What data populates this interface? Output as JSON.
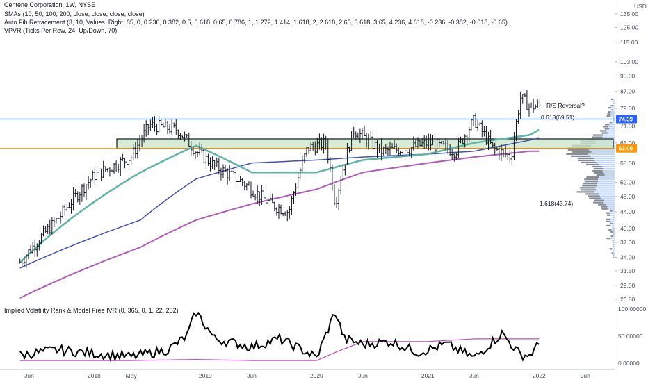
{
  "header": {
    "title": "Centene Corporation, 1W, NYSE",
    "line2": "SMAs (10, 50, 100, 200, close, close, close, close)",
    "line3": "Auto Fib Retracement (3, 10, Values, Right, 85, 0, 0.236, 0.382, 0.5, 0.618, 0.65, 0.786, 1, 1.272, 1.414, 1.618, 2, 2.618, 2.65, 3.618, 3.65, 4.236, 4.618, -0.236, -0.382, -0.618, -0.65)",
    "line4": "VPVR (Ticks Per Row, 24, Up/Down, 70)",
    "currency": "USD"
  },
  "price_axis": {
    "ticks": [
      "135.00",
      "125.00",
      "115.00",
      "103.00",
      "95.00",
      "87.00",
      "79.00",
      "71.50",
      "65.00",
      "58.00",
      "52.00",
      "48.00",
      "44.00",
      "40.00",
      "37.00",
      "34.00",
      "31.50",
      "29.00",
      "26.80"
    ],
    "tags": [
      {
        "label": "74.39",
        "value": 74.39,
        "color": "#2962ff"
      },
      {
        "label": "63.00",
        "value": 63.0,
        "color": "#ff9800"
      }
    ]
  },
  "annotations": {
    "rs_reversal": "R/S Reversal?",
    "fib_0618": "0.618(69.51)",
    "fib_1618": "1.618(43.74)"
  },
  "ivr_panel": {
    "title": "Implied Volatility Rank & Model Free IVR (0, 365, 0, 1, 22, 252)",
    "ticks": [
      "100.00000",
      "50.00000",
      "0.00000"
    ]
  },
  "time_axis": {
    "labels": [
      "Jun",
      "2018",
      "May",
      "2019",
      "Jun",
      "2020",
      "Jun",
      "2021",
      "Jun",
      "2022",
      "Jun"
    ]
  },
  "colors": {
    "bars": "#131722",
    "resistance": "#2962ff",
    "support": "#ff9800",
    "zone_fill": "#c8e6c9",
    "sma50": "#5fb3a7",
    "sma100": "#3f51b5",
    "sma200": "#b05cb8",
    "ivr": "#000000",
    "mfivr": "#c44dbd",
    "vpvr": "#2962ff"
  },
  "chart_data": [
    {
      "type": "line",
      "subtype": "ohlc-weekly",
      "title": "Centene Corporation, 1W, NYSE",
      "y_scale": "log",
      "ylim": [
        26.8,
        135
      ],
      "horizontal_levels": [
        74.39,
        63.0
      ],
      "zone": [
        63.0,
        66.5
      ],
      "fib_levels": [
        {
          "label": "0.618",
          "value": 69.51
        },
        {
          "label": "1.618",
          "value": 43.74
        }
      ],
      "series": [
        {
          "name": "close",
          "x": [
            "2017-05",
            "2017-09",
            "2018-01",
            "2018-05",
            "2018-07",
            "2018-10",
            "2018-12",
            "2019-02",
            "2019-05",
            "2019-08",
            "2019-10",
            "2019-12",
            "2020-02",
            "2020-03",
            "2020-05",
            "2020-08",
            "2020-11",
            "2021-01",
            "2021-04",
            "2021-06",
            "2021-08",
            "2021-10",
            "2021-11",
            "2021-12",
            "2022-01"
          ],
          "values": [
            33,
            42,
            54,
            60,
            72,
            70,
            62,
            57,
            52,
            46,
            44,
            63,
            65,
            46,
            70,
            62,
            63,
            65,
            62,
            74,
            63,
            60,
            84,
            80,
            80
          ]
        },
        {
          "name": "SMA 50",
          "x": [
            "2017-05",
            "2018-06",
            "2018-12",
            "2019-06",
            "2020-01",
            "2020-06",
            "2021-01",
            "2021-06",
            "2021-12",
            "2022-01"
          ],
          "values": [
            33,
            55,
            64,
            55,
            55,
            59,
            61,
            65,
            68,
            70
          ]
        },
        {
          "name": "SMA 100",
          "x": [
            "2017-05",
            "2018-06",
            "2018-12",
            "2019-06",
            "2020-01",
            "2020-06",
            "2021-01",
            "2021-06",
            "2021-12",
            "2022-01"
          ],
          "values": [
            32,
            42,
            53,
            58,
            59,
            60,
            61,
            62,
            66,
            67
          ]
        },
        {
          "name": "SMA 200",
          "x": [
            "2017-05",
            "2018-06",
            "2018-12",
            "2019-06",
            "2020-01",
            "2020-06",
            "2021-01",
            "2021-06",
            "2021-12",
            "2022-01"
          ],
          "values": [
            27,
            36,
            42,
            46,
            50,
            55,
            58,
            60,
            62,
            62
          ]
        }
      ]
    },
    {
      "type": "line",
      "title": "Implied Volatility Rank & Model Free IVR (0, 365, 0, 1, 22, 252)",
      "ylim": [
        0,
        100
      ],
      "series": [
        {
          "name": "IVR",
          "x": [
            "2017-05",
            "2017-09",
            "2018-01",
            "2018-05",
            "2018-09",
            "2018-11",
            "2018-12",
            "2019-02",
            "2019-06",
            "2019-09",
            "2019-12",
            "2020-01",
            "2020-03",
            "2020-04",
            "2020-06",
            "2020-09",
            "2020-12",
            "2021-03",
            "2021-06",
            "2021-09",
            "2021-11",
            "2021-12",
            "2022-01"
          ],
          "values": [
            15,
            25,
            18,
            12,
            25,
            50,
            95,
            45,
            30,
            45,
            20,
            10,
            95,
            45,
            35,
            40,
            20,
            35,
            10,
            55,
            15,
            15,
            35
          ]
        },
        {
          "name": "Model Free IVR",
          "x": [
            "2017-05",
            "2018-05",
            "2018-12",
            "2019-06",
            "2020-01",
            "2020-03",
            "2020-06",
            "2021-01",
            "2021-06",
            "2022-01"
          ],
          "values": [
            5,
            5,
            7,
            5,
            5,
            20,
            40,
            40,
            45,
            45
          ]
        }
      ]
    }
  ]
}
